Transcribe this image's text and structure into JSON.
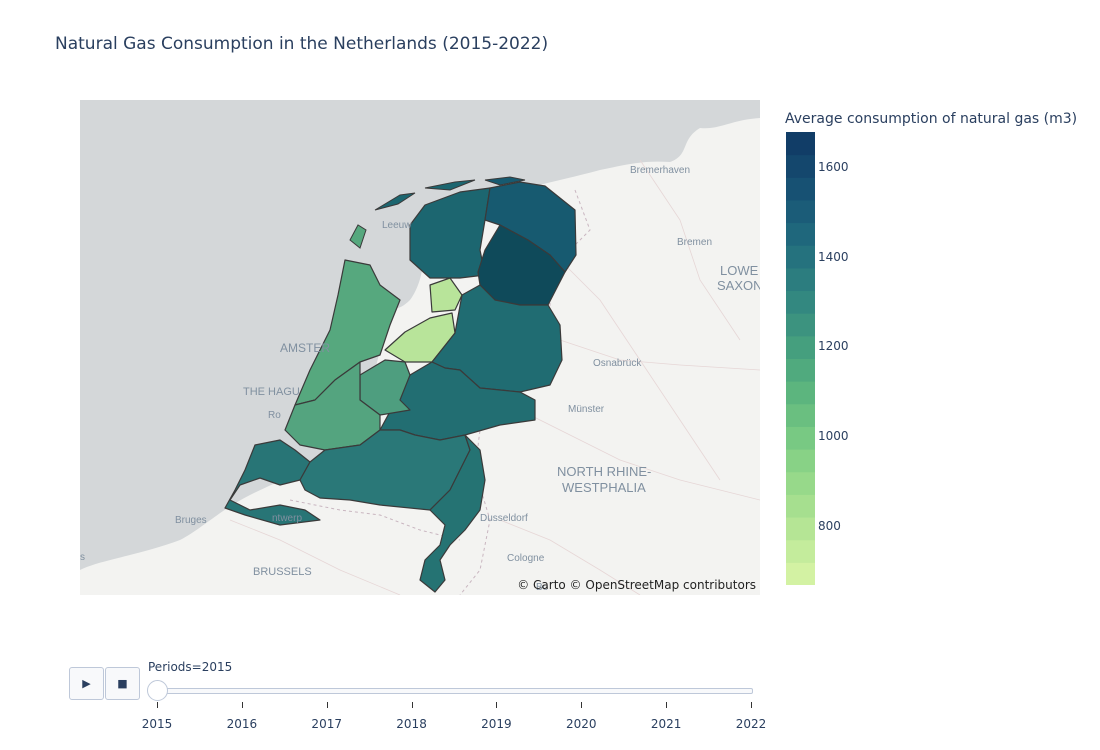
{
  "title": "Natural Gas Consumption in the Netherlands (2015-2022)",
  "colorbar": {
    "title": "Average consumption of natural gas (m3)",
    "ticks": [
      {
        "value": 800,
        "label": "800"
      },
      {
        "value": 1000,
        "label": "1000"
      },
      {
        "value": 1200,
        "label": "1200"
      },
      {
        "value": 1400,
        "label": "1400"
      },
      {
        "value": 1600,
        "label": "1600"
      }
    ],
    "range": [
      670,
      1680
    ],
    "colors": [
      "#d3f2a3",
      "#c4ec9c",
      "#b5e595",
      "#a6df8f",
      "#97d98a",
      "#88d286",
      "#78c983",
      "#6abf80",
      "#5cb57e",
      "#50aa7e",
      "#459f7e",
      "#3c937f",
      "#338880",
      "#2c7d7f",
      "#25727e",
      "#1f677c",
      "#1b5c78",
      "#175173",
      "#14476d",
      "#113d67"
    ]
  },
  "map": {
    "attribution": "© Carto © OpenStreetMap contributors",
    "labels": [
      "Bremerhaven",
      "Bremen",
      "LOWE",
      "SAXON",
      "Leeuw",
      "AMSTER",
      "THE HAGU",
      "Ro",
      "Osnabrück",
      "Münster",
      "NORTH RHINE-",
      "WESTPHALIA",
      "Bruges",
      "ntwerp",
      "Dusseldorf",
      "Cologne",
      "BRUSSELS",
      "Bo",
      "s"
    ],
    "regions": [
      {
        "name": "Groningen",
        "value": 1520,
        "color": "#175a70"
      },
      {
        "name": "Friesland",
        "value": 1450,
        "color": "#1c6670"
      },
      {
        "name": "Drenthe",
        "value": 1640,
        "color": "#0f4a5a"
      },
      {
        "name": "Overijssel",
        "value": 1420,
        "color": "#206c72"
      },
      {
        "name": "Flevoland",
        "value": 780,
        "color": "#b8e49a"
      },
      {
        "name": "Gelderland",
        "value": 1400,
        "color": "#226e72"
      },
      {
        "name": "Utrecht",
        "value": 1200,
        "color": "#4e9e7f"
      },
      {
        "name": "Noord-Holland",
        "value": 1170,
        "color": "#56a87e"
      },
      {
        "name": "Zuid-Holland",
        "value": 1180,
        "color": "#54a47f"
      },
      {
        "name": "Zeeland",
        "value": 1360,
        "color": "#287576"
      },
      {
        "name": "Noord-Brabant",
        "value": 1340,
        "color": "#2a7878"
      },
      {
        "name": "Limburg",
        "value": 1380,
        "color": "#257373"
      }
    ]
  },
  "controls": {
    "play_label": "▶",
    "stop_label": "■",
    "slider_current": "Periods=2015",
    "slider_steps": [
      "2015",
      "2016",
      "2017",
      "2018",
      "2019",
      "2020",
      "2021",
      "2022"
    ],
    "active_index": 0
  }
}
